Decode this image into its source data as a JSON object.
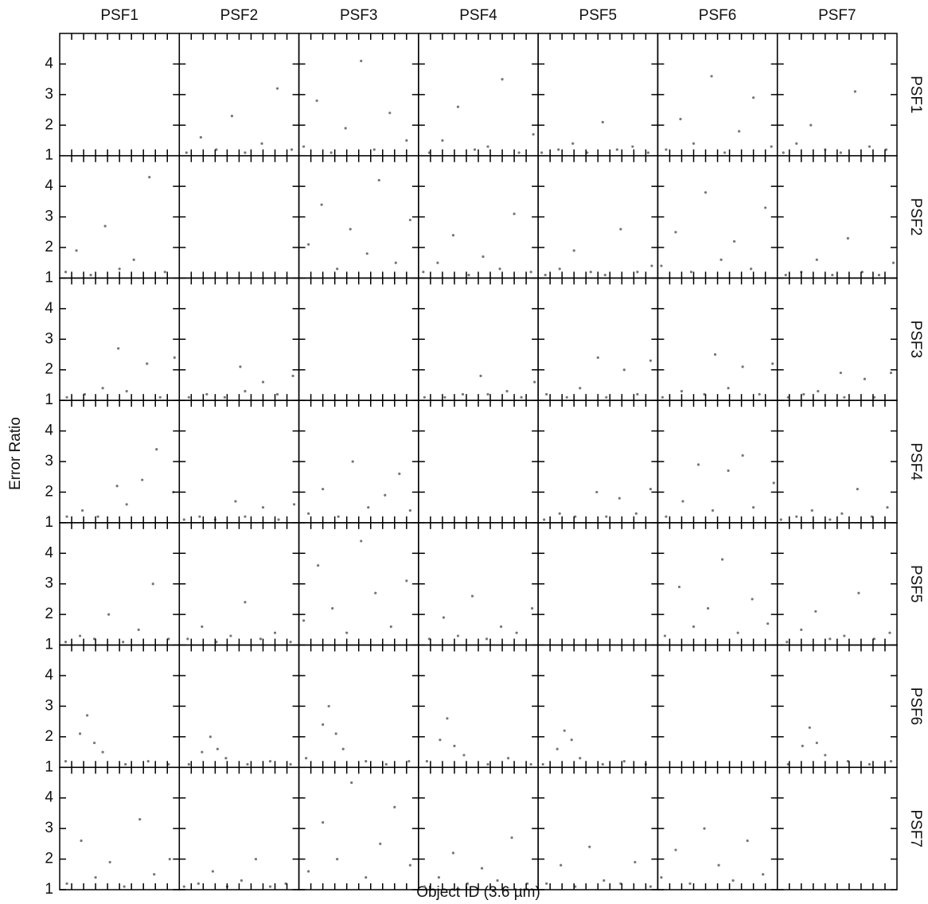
{
  "chart_data": {
    "type": "scatter-matrix",
    "xlabel": "Object ID (3.6 µm)",
    "ylabel": "Error Ratio",
    "columns": [
      "PSF1",
      "PSF2",
      "PSF3",
      "PSF4",
      "PSF5",
      "PSF6",
      "PSF7"
    ],
    "rows": [
      "PSF1",
      "PSF2",
      "PSF3",
      "PSF4",
      "PSF5",
      "PSF6",
      "PSF7"
    ],
    "xlim": [
      0,
      10
    ],
    "xticks": [
      1,
      2,
      3,
      4,
      5,
      6,
      7,
      8,
      9
    ],
    "ylim": [
      1,
      5
    ],
    "yticks": [
      1,
      2,
      3,
      4
    ],
    "color": "#777777",
    "panels": [
      [
        null,
        {
          "x": [
            0.6,
            1.8,
            3.1,
            4.4,
            5.5,
            6.9,
            8.2,
            9.4
          ],
          "y": [
            1.1,
            1.6,
            1.2,
            2.3,
            1.1,
            1.4,
            3.2,
            1.2
          ]
        },
        {
          "x": [
            0.4,
            1.5,
            2.7,
            3.9,
            5.2,
            6.3,
            7.6,
            9.0
          ],
          "y": [
            1.3,
            2.8,
            1.1,
            1.9,
            4.1,
            1.2,
            2.4,
            1.5
          ]
        },
        {
          "x": [
            0.9,
            2.0,
            3.3,
            4.7,
            5.8,
            7.0,
            8.4,
            9.6
          ],
          "y": [
            1.1,
            1.5,
            2.6,
            1.2,
            1.3,
            3.5,
            1.1,
            1.7
          ]
        },
        {
          "x": [
            0.3,
            1.7,
            2.9,
            4.1,
            5.4,
            6.6,
            7.9,
            9.2
          ],
          "y": [
            1.1,
            1.2,
            1.4,
            1.1,
            2.1,
            1.2,
            1.3,
            1.1
          ]
        },
        {
          "x": [
            0.7,
            1.9,
            3.0,
            4.5,
            5.6,
            6.8,
            8.0,
            9.5
          ],
          "y": [
            1.2,
            2.2,
            1.4,
            3.6,
            1.1,
            1.8,
            2.9,
            1.3
          ]
        },
        {
          "x": [
            0.5,
            1.6,
            2.8,
            4.0,
            5.3,
            6.5,
            7.7,
            9.1
          ],
          "y": [
            1.1,
            1.4,
            2.0,
            1.2,
            1.1,
            3.1,
            1.3,
            1.2
          ]
        }
      ],
      [
        {
          "x": [
            0.5,
            1.4,
            2.6,
            3.8,
            5.0,
            6.2,
            7.5,
            8.8
          ],
          "y": [
            1.2,
            1.9,
            1.1,
            2.7,
            1.3,
            1.6,
            4.3,
            1.2
          ]
        },
        null,
        {
          "x": [
            0.8,
            1.9,
            3.2,
            4.3,
            5.7,
            6.7,
            8.1,
            9.3
          ],
          "y": [
            2.1,
            3.4,
            1.3,
            2.6,
            1.8,
            4.2,
            1.5,
            2.9
          ]
        },
        {
          "x": [
            0.4,
            1.6,
            2.9,
            4.2,
            5.4,
            6.8,
            8.0,
            9.4
          ],
          "y": [
            1.2,
            1.5,
            2.4,
            1.1,
            1.7,
            1.3,
            3.1,
            1.2
          ]
        },
        {
          "x": [
            0.6,
            1.8,
            3.0,
            4.4,
            5.6,
            6.9,
            8.3,
            9.5
          ],
          "y": [
            1.1,
            1.3,
            1.9,
            1.2,
            1.1,
            2.6,
            1.2,
            1.4
          ]
        },
        {
          "x": [
            0.3,
            1.5,
            2.8,
            4.0,
            5.3,
            6.4,
            7.8,
            9.0
          ],
          "y": [
            1.4,
            2.5,
            1.2,
            3.8,
            1.6,
            2.2,
            1.3,
            3.3
          ]
        },
        {
          "x": [
            0.7,
            2.0,
            3.3,
            4.6,
            5.9,
            7.1,
            8.5,
            9.7
          ],
          "y": [
            1.1,
            1.2,
            1.6,
            1.1,
            2.3,
            1.2,
            1.1,
            1.5
          ]
        }
      ],
      [
        {
          "x": [
            0.6,
            2.1,
            3.6,
            4.9,
            5.6,
            7.3,
            8.4,
            9.6
          ],
          "y": [
            1.1,
            1.2,
            1.4,
            2.7,
            1.3,
            2.2,
            1.1,
            2.4
          ]
        },
        {
          "x": [
            0.8,
            2.3,
            3.8,
            5.1,
            5.5,
            7.0,
            8.2,
            9.5
          ],
          "y": [
            1.1,
            1.2,
            1.1,
            2.1,
            1.3,
            1.6,
            1.2,
            1.8
          ]
        },
        null,
        {
          "x": [
            0.5,
            2.2,
            3.7,
            5.2,
            5.8,
            7.4,
            8.6,
            9.7
          ],
          "y": [
            1.1,
            1.1,
            1.2,
            1.8,
            1.2,
            1.3,
            1.1,
            1.6
          ]
        },
        {
          "x": [
            0.7,
            2.4,
            3.5,
            5.0,
            5.7,
            7.2,
            8.3,
            9.4
          ],
          "y": [
            1.2,
            1.1,
            1.4,
            2.4,
            1.1,
            2.0,
            1.2,
            2.3
          ]
        },
        {
          "x": [
            0.4,
            2.0,
            3.9,
            4.8,
            5.9,
            7.1,
            8.5,
            9.6
          ],
          "y": [
            1.1,
            1.3,
            1.2,
            2.5,
            1.4,
            2.1,
            1.2,
            2.2
          ]
        },
        {
          "x": [
            0.9,
            2.2,
            3.4,
            5.3,
            5.6,
            7.3,
            8.1,
            9.5
          ],
          "y": [
            1.1,
            1.2,
            1.3,
            1.9,
            1.1,
            1.7,
            1.1,
            1.9
          ]
        }
      ],
      [
        {
          "x": [
            0.6,
            1.9,
            3.2,
            4.8,
            5.6,
            6.9,
            8.1,
            9.5
          ],
          "y": [
            1.2,
            1.4,
            1.2,
            2.2,
            1.6,
            2.4,
            3.4,
            2.0
          ]
        },
        {
          "x": [
            0.4,
            1.7,
            3.0,
            4.7,
            5.5,
            7.0,
            8.3,
            9.6
          ],
          "y": [
            1.1,
            1.2,
            1.1,
            1.7,
            1.2,
            1.5,
            1.1,
            1.6
          ]
        },
        {
          "x": [
            0.8,
            2.0,
            3.3,
            4.5,
            5.8,
            7.2,
            8.4,
            9.3
          ],
          "y": [
            1.3,
            2.1,
            1.2,
            3.0,
            1.5,
            1.9,
            2.6,
            1.4
          ]
        },
        null,
        {
          "x": [
            0.5,
            1.8,
            3.1,
            4.9,
            5.7,
            6.8,
            8.2,
            9.4
          ],
          "y": [
            1.1,
            1.3,
            1.2,
            2.0,
            1.2,
            1.8,
            1.3,
            2.1
          ]
        },
        {
          "x": [
            0.7,
            2.1,
            3.4,
            4.6,
            5.9,
            7.1,
            8.0,
            9.7
          ],
          "y": [
            1.2,
            1.7,
            2.9,
            1.4,
            2.7,
            3.2,
            1.5,
            2.3
          ]
        },
        {
          "x": [
            0.3,
            1.6,
            2.9,
            4.4,
            5.4,
            6.7,
            7.9,
            9.2
          ],
          "y": [
            1.1,
            1.2,
            1.4,
            1.1,
            1.3,
            2.1,
            1.2,
            1.5
          ]
        }
      ],
      [
        {
          "x": [
            0.5,
            1.7,
            2.9,
            4.1,
            5.3,
            6.6,
            7.8,
            9.1
          ],
          "y": [
            1.1,
            1.3,
            1.2,
            2.0,
            1.1,
            1.5,
            3.0,
            1.2
          ]
        },
        {
          "x": [
            0.7,
            1.9,
            3.1,
            4.3,
            5.5,
            6.8,
            8.0,
            9.3
          ],
          "y": [
            1.2,
            1.6,
            1.1,
            1.3,
            2.4,
            1.2,
            1.4,
            1.1
          ]
        },
        {
          "x": [
            0.4,
            1.6,
            2.8,
            4.0,
            5.2,
            6.4,
            7.7,
            9.0
          ],
          "y": [
            1.8,
            3.6,
            2.2,
            1.4,
            4.4,
            2.7,
            1.6,
            3.1
          ]
        },
        {
          "x": [
            0.9,
            2.1,
            3.3,
            4.5,
            5.7,
            6.9,
            8.2,
            9.5
          ],
          "y": [
            1.2,
            1.9,
            1.3,
            2.6,
            1.2,
            1.6,
            1.4,
            2.2
          ]
        },
        null,
        {
          "x": [
            0.6,
            1.8,
            3.0,
            4.2,
            5.4,
            6.7,
            7.9,
            9.2
          ],
          "y": [
            1.3,
            2.9,
            1.6,
            2.2,
            3.8,
            1.4,
            2.5,
            1.7
          ]
        },
        {
          "x": [
            0.8,
            2.0,
            3.2,
            4.4,
            5.6,
            6.8,
            8.1,
            9.4
          ],
          "y": [
            1.1,
            1.5,
            2.1,
            1.2,
            1.3,
            2.7,
            1.2,
            1.4
          ]
        }
      ],
      [
        {
          "x": [
            0.5,
            1.7,
            2.3,
            2.9,
            3.6,
            5.5,
            7.4,
            9.1
          ],
          "y": [
            1.2,
            2.1,
            2.7,
            1.8,
            1.5,
            1.1,
            1.2,
            1.1
          ]
        },
        {
          "x": [
            0.8,
            1.9,
            2.6,
            3.2,
            3.9,
            5.7,
            7.6,
            9.3
          ],
          "y": [
            1.1,
            1.5,
            2.0,
            1.6,
            1.3,
            1.1,
            1.2,
            1.1
          ]
        },
        {
          "x": [
            0.6,
            2.0,
            2.5,
            3.1,
            3.7,
            5.6,
            7.3,
            9.2
          ],
          "y": [
            1.3,
            2.4,
            3.0,
            2.1,
            1.6,
            1.2,
            1.1,
            1.2
          ]
        },
        {
          "x": [
            0.7,
            1.8,
            2.4,
            3.0,
            3.8,
            5.8,
            7.5,
            9.4
          ],
          "y": [
            1.2,
            1.9,
            2.6,
            1.7,
            1.4,
            1.1,
            1.3,
            1.1
          ]
        },
        {
          "x": [
            0.4,
            1.6,
            2.2,
            2.8,
            3.5,
            5.4,
            7.2,
            9.0
          ],
          "y": [
            1.1,
            1.6,
            2.2,
            1.9,
            1.3,
            1.1,
            1.2,
            1.1
          ]
        },
        null,
        {
          "x": [
            0.9,
            2.1,
            2.7,
            3.3,
            4.0,
            5.9,
            7.7,
            9.5
          ],
          "y": [
            1.1,
            1.7,
            2.3,
            1.8,
            1.4,
            1.2,
            1.1,
            1.2
          ]
        }
      ],
      [
        {
          "x": [
            0.6,
            1.8,
            3.0,
            4.2,
            5.4,
            6.7,
            7.9,
            9.2
          ],
          "y": [
            1.2,
            2.6,
            1.4,
            1.9,
            1.1,
            3.3,
            1.5,
            2.0
          ]
        },
        {
          "x": [
            0.4,
            1.6,
            2.8,
            4.0,
            5.2,
            6.4,
            7.6,
            8.9
          ],
          "y": [
            1.1,
            1.2,
            1.6,
            1.1,
            1.3,
            2.0,
            1.1,
            1.2
          ]
        },
        {
          "x": [
            0.8,
            2.0,
            3.2,
            4.4,
            5.6,
            6.8,
            8.0,
            9.3
          ],
          "y": [
            1.6,
            3.2,
            2.0,
            4.5,
            1.4,
            2.5,
            3.7,
            1.8
          ]
        },
        {
          "x": [
            0.5,
            1.7,
            2.9,
            4.1,
            5.3,
            6.6,
            7.8,
            9.1
          ],
          "y": [
            1.1,
            1.4,
            2.2,
            1.2,
            1.7,
            1.3,
            2.7,
            1.2
          ]
        },
        {
          "x": [
            0.7,
            1.9,
            3.1,
            4.3,
            5.5,
            6.9,
            8.1,
            9.4
          ],
          "y": [
            1.2,
            1.8,
            1.1,
            2.4,
            1.3,
            1.2,
            1.9,
            1.1
          ]
        },
        {
          "x": [
            0.3,
            1.5,
            2.7,
            3.9,
            5.1,
            6.3,
            7.5,
            8.8
          ],
          "y": [
            1.4,
            2.3,
            1.2,
            3.0,
            1.8,
            1.3,
            2.6,
            1.5
          ]
        },
        null
      ]
    ]
  }
}
